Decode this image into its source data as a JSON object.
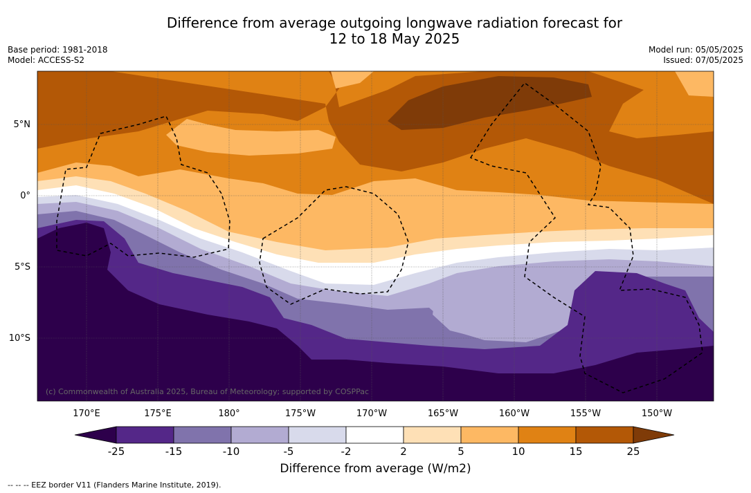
{
  "title_line1": "Difference from average outgoing longwave radiation forecast for",
  "title_line2": "12 to 18 May 2025",
  "base_period": "Base period: 1981-2018",
  "model": "Model: ACCESS-S2",
  "model_run": "Model run: 05/05/2025",
  "issued": "Issued: 07/05/2025",
  "copyright": "(c) Commonwealth of Australia 2025, Bureau of Meteorology; supported by COSPPac",
  "lat_labels": [
    "5°N",
    "0°",
    "5°S",
    "10°S"
  ],
  "lon_labels": [
    "170°E",
    "175°E",
    "180°",
    "175°W",
    "170°W",
    "165°W",
    "160°W",
    "155°W",
    "150°W"
  ],
  "colorbar": {
    "ticks": [
      "-25",
      "-15",
      "-10",
      "-5",
      "-2",
      "2",
      "5",
      "10",
      "15",
      "25"
    ],
    "colors": [
      "#2d004b",
      "#542788",
      "#8073ac",
      "#b2abd2",
      "#d8daeb",
      "#ffffff",
      "#fee0b6",
      "#fdb863",
      "#e08214",
      "#b35806",
      "#7f3b08"
    ],
    "label": "Difference from average (W/m2)"
  },
  "legend_note": "-- -- -- EEZ border V11 (Flanders Marine Institute, 2019)."
}
